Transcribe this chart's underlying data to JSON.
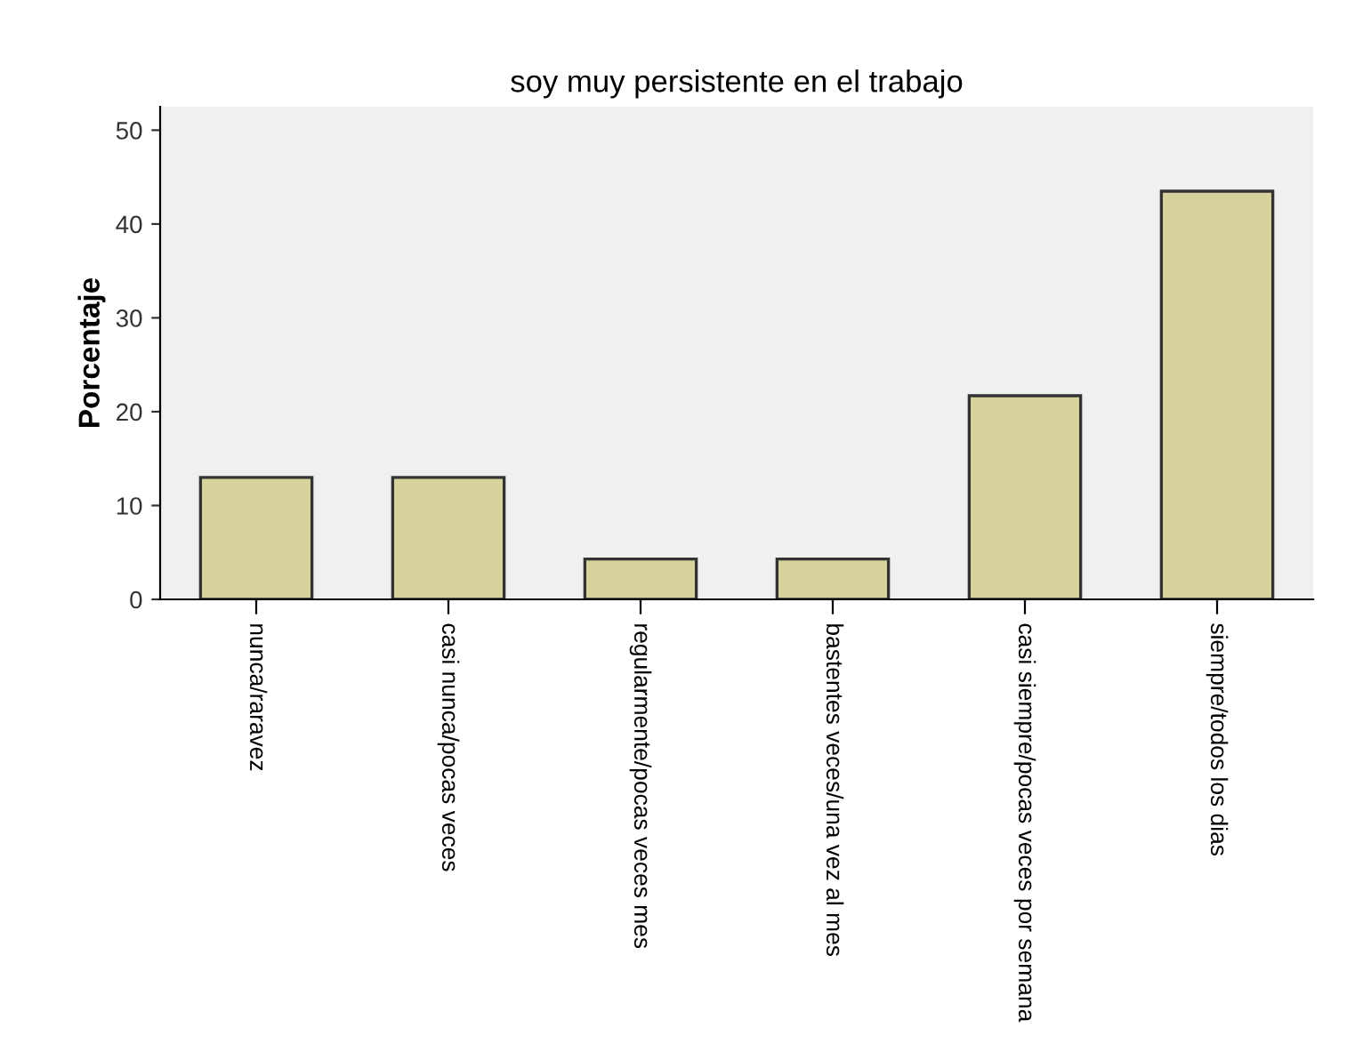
{
  "chart_data": {
    "type": "bar",
    "title": "soy muy persistente en el trabajo",
    "ylabel": "Porcentaje",
    "categories": [
      "nunca/raravez",
      "casi nunca/pocas veces",
      "regularmente/pocas veces mes",
      "bastentes veces/una vez al mes",
      "casi siempre/pocas veces por semana",
      "siempre/todos los dias"
    ],
    "values": [
      13.0,
      13.0,
      4.3,
      4.3,
      21.7,
      43.5
    ],
    "color": "#d6d29c",
    "ylim": [
      0,
      52.5
    ],
    "yticks": [
      0,
      10,
      20,
      30,
      40,
      50
    ],
    "grid": false,
    "legend": false
  }
}
